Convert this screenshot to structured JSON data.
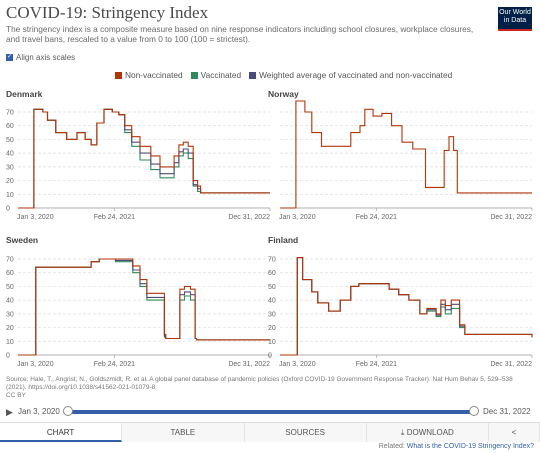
{
  "header": {
    "title": "COVID-19: Stringency Index",
    "subtitle": "The stringency index is a composite measure based on nine response indicators including school closures, workplace closures, and travel bans, rescaled to a value from 0 to 100 (100 = strictest).",
    "logo_line1": "Our World",
    "logo_line2": "in Data",
    "align_label": "Align axis scales"
  },
  "legend": [
    {
      "label": "Non-vaccinated",
      "color": "#b13507"
    },
    {
      "label": "Vaccinated",
      "color": "#2f8b5a"
    },
    {
      "label": "Weighted average of vaccinated and non-vaccinated",
      "color": "#4c4c7a"
    }
  ],
  "colors": {
    "non_vaccinated": "#b13507",
    "vaccinated": "#2f8b5a",
    "weighted": "#4c4c7a"
  },
  "chart_data": [
    {
      "type": "line",
      "title": "Denmark",
      "ylim": [
        0,
        70
      ],
      "yticks": [
        0,
        10,
        20,
        30,
        40,
        50,
        60,
        70
      ],
      "xticks": [
        "Jan 3, 2020",
        "Feb 24, 2021",
        "Dec 31, 2022"
      ],
      "series": [
        {
          "name": "Non-vaccinated",
          "x": [
            "2020-01-03",
            "2020-03-01",
            "2020-03-12",
            "2020-04-20",
            "2020-05-10",
            "2020-06-15",
            "2020-08-01",
            "2020-09-15",
            "2020-10-20",
            "2020-11-15",
            "2020-12-10",
            "2021-01-10",
            "2021-02-15",
            "2021-03-15",
            "2021-04-10",
            "2021-05-10",
            "2021-06-15",
            "2021-08-01",
            "2021-09-10",
            "2021-11-10",
            "2021-12-01",
            "2021-12-20",
            "2022-01-10",
            "2022-02-01",
            "2022-02-20",
            "2022-03-05",
            "2022-12-31"
          ],
          "y": [
            0,
            0,
            72,
            70,
            64,
            55,
            50,
            55,
            50,
            46,
            62,
            72,
            70,
            68,
            60,
            52,
            45,
            38,
            30,
            38,
            46,
            48,
            45,
            20,
            16,
            11,
            11
          ]
        },
        {
          "name": "Vaccinated",
          "x": [
            "2020-01-03",
            "2020-03-01",
            "2020-03-12",
            "2020-04-20",
            "2020-05-10",
            "2020-06-15",
            "2020-08-01",
            "2020-09-15",
            "2020-10-20",
            "2020-11-15",
            "2020-12-10",
            "2021-01-10",
            "2021-02-15",
            "2021-03-15",
            "2021-04-10",
            "2021-05-10",
            "2021-06-15",
            "2021-08-01",
            "2021-09-10",
            "2021-11-10",
            "2021-12-01",
            "2021-12-20",
            "2022-01-10",
            "2022-02-01",
            "2022-02-20",
            "2022-03-05",
            "2022-12-31"
          ],
          "y": [
            0,
            0,
            72,
            70,
            64,
            55,
            50,
            55,
            50,
            46,
            62,
            72,
            70,
            68,
            55,
            45,
            35,
            28,
            22,
            30,
            38,
            40,
            36,
            16,
            12,
            11,
            11
          ]
        },
        {
          "name": "Weighted average of vaccinated and non-vaccinated",
          "x": [
            "2020-01-03",
            "2020-03-01",
            "2020-03-12",
            "2020-04-20",
            "2020-05-10",
            "2020-06-15",
            "2020-08-01",
            "2020-09-15",
            "2020-10-20",
            "2020-11-15",
            "2020-12-10",
            "2021-01-10",
            "2021-02-15",
            "2021-03-15",
            "2021-04-10",
            "2021-05-10",
            "2021-06-15",
            "2021-08-01",
            "2021-09-10",
            "2021-11-10",
            "2021-12-01",
            "2021-12-20",
            "2022-01-10",
            "2022-02-01",
            "2022-02-20",
            "2022-03-05",
            "2022-12-31"
          ],
          "y": [
            0,
            0,
            72,
            70,
            64,
            55,
            50,
            55,
            50,
            46,
            62,
            72,
            70,
            68,
            57,
            48,
            40,
            32,
            25,
            33,
            41,
            43,
            40,
            17,
            14,
            11,
            11
          ]
        }
      ]
    },
    {
      "type": "line",
      "title": "Norway",
      "ylim": [
        0,
        70
      ],
      "yticks": [
        0,
        10,
        20,
        30,
        40,
        50,
        60,
        70
      ],
      "xticks": [
        "Jan 3, 2020",
        "Feb 24, 2021",
        "Dec 31, 2022"
      ],
      "series": [
        {
          "name": "Non-vaccinated",
          "x": [
            "2020-01-03",
            "2020-03-01",
            "2020-03-12",
            "2020-04-20",
            "2020-05-20",
            "2020-07-01",
            "2020-09-15",
            "2020-11-05",
            "2020-12-15",
            "2021-01-05",
            "2021-02-10",
            "2021-03-20",
            "2021-05-01",
            "2021-06-15",
            "2021-08-01",
            "2021-09-25",
            "2021-11-15",
            "2021-12-15",
            "2022-01-05",
            "2022-01-25",
            "2022-02-10",
            "2022-02-12",
            "2022-12-31"
          ],
          "y": [
            0,
            0,
            78,
            70,
            55,
            45,
            45,
            55,
            60,
            72,
            67,
            69,
            60,
            48,
            43,
            15,
            15,
            42,
            52,
            42,
            11,
            11,
            11
          ]
        }
      ]
    },
    {
      "type": "line",
      "title": "Sweden",
      "ylim": [
        0,
        70
      ],
      "yticks": [
        0,
        10,
        20,
        30,
        40,
        50,
        60,
        70
      ],
      "xticks": [
        "Jan 3, 2020",
        "Feb 24, 2021",
        "Dec 31, 2022"
      ],
      "series": [
        {
          "name": "Non-vaccinated",
          "x": [
            "2020-01-03",
            "2020-03-01",
            "2020-03-20",
            "2020-06-01",
            "2020-09-01",
            "2020-11-15",
            "2020-12-20",
            "2021-03-01",
            "2021-05-15",
            "2021-06-15",
            "2021-07-15",
            "2021-09-29",
            "2021-10-05",
            "2021-11-15",
            "2021-12-05",
            "2021-12-25",
            "2022-01-20",
            "2022-02-09",
            "2022-02-15",
            "2022-12-31"
          ],
          "y": [
            0,
            0,
            64,
            64,
            64,
            68,
            70,
            70,
            65,
            55,
            45,
            15,
            12,
            12,
            48,
            50,
            48,
            12,
            11,
            11
          ]
        },
        {
          "name": "Vaccinated",
          "x": [
            "2020-01-03",
            "2020-03-01",
            "2020-03-20",
            "2020-06-01",
            "2020-09-01",
            "2020-11-15",
            "2020-12-20",
            "2021-03-01",
            "2021-05-15",
            "2021-06-15",
            "2021-07-15",
            "2021-09-29",
            "2021-10-05",
            "2021-11-15",
            "2021-12-05",
            "2021-12-25",
            "2022-01-20",
            "2022-02-09",
            "2022-02-15",
            "2022-12-31"
          ],
          "y": [
            0,
            0,
            64,
            64,
            64,
            68,
            70,
            68,
            60,
            50,
            40,
            13,
            12,
            12,
            40,
            43,
            40,
            12,
            11,
            11
          ]
        },
        {
          "name": "Weighted average of vaccinated and non-vaccinated",
          "x": [
            "2020-01-03",
            "2020-03-01",
            "2020-03-20",
            "2020-06-01",
            "2020-09-01",
            "2020-11-15",
            "2020-12-20",
            "2021-03-01",
            "2021-05-15",
            "2021-06-15",
            "2021-07-15",
            "2021-09-29",
            "2021-10-05",
            "2021-11-15",
            "2021-12-05",
            "2021-12-25",
            "2022-01-20",
            "2022-02-09",
            "2022-02-15",
            "2022-12-31"
          ],
          "y": [
            0,
            0,
            64,
            64,
            64,
            68,
            70,
            69,
            62,
            52,
            42,
            14,
            12,
            12,
            44,
            46,
            44,
            12,
            11,
            11
          ]
        }
      ]
    },
    {
      "type": "line",
      "title": "Finland",
      "ylim": [
        0,
        70
      ],
      "yticks": [
        0,
        10,
        20,
        30,
        40,
        50,
        60,
        70
      ],
      "xticks": [
        "Jan 3, 2020",
        "Feb 24, 2021",
        "Dec 31, 2022"
      ],
      "series": [
        {
          "name": "Non-vaccinated",
          "x": [
            "2020-01-03",
            "2020-03-01",
            "2020-03-18",
            "2020-04-10",
            "2020-05-20",
            "2020-06-15",
            "2020-08-01",
            "2020-09-20",
            "2020-11-05",
            "2020-12-10",
            "2021-03-01",
            "2021-04-20",
            "2021-06-01",
            "2021-07-15",
            "2021-09-01",
            "2021-10-01",
            "2021-11-10",
            "2021-12-01",
            "2021-12-20",
            "2022-01-15",
            "2022-02-20",
            "2022-03-15",
            "2022-12-31"
          ],
          "y": [
            0,
            0,
            71,
            55,
            46,
            38,
            32,
            40,
            50,
            52,
            52,
            48,
            44,
            40,
            30,
            34,
            30,
            40,
            36,
            40,
            22,
            15,
            13
          ]
        },
        {
          "name": "Vaccinated",
          "x": [
            "2020-01-03",
            "2020-03-01",
            "2020-03-18",
            "2020-04-10",
            "2020-05-20",
            "2020-06-15",
            "2020-08-01",
            "2020-09-20",
            "2020-11-05",
            "2020-12-10",
            "2021-03-01",
            "2021-04-20",
            "2021-06-01",
            "2021-07-15",
            "2021-09-01",
            "2021-10-01",
            "2021-11-10",
            "2021-12-01",
            "2021-12-20",
            "2022-01-15",
            "2022-02-20",
            "2022-03-15",
            "2022-12-31"
          ],
          "y": [
            0,
            0,
            71,
            55,
            46,
            38,
            32,
            40,
            50,
            52,
            52,
            48,
            44,
            40,
            30,
            32,
            28,
            35,
            30,
            34,
            20,
            15,
            13
          ]
        },
        {
          "name": "Weighted average of vaccinated and non-vaccinated",
          "x": [
            "2020-01-03",
            "2020-03-01",
            "2020-03-18",
            "2020-04-10",
            "2020-05-20",
            "2020-06-15",
            "2020-08-01",
            "2020-09-20",
            "2020-11-05",
            "2020-12-10",
            "2021-03-01",
            "2021-04-20",
            "2021-06-01",
            "2021-07-15",
            "2021-09-01",
            "2021-10-01",
            "2021-11-10",
            "2021-12-01",
            "2021-12-20",
            "2022-01-15",
            "2022-02-20",
            "2022-03-15",
            "2022-12-31"
          ],
          "y": [
            0,
            0,
            71,
            55,
            46,
            38,
            32,
            40,
            50,
            52,
            52,
            48,
            44,
            40,
            30,
            33,
            29,
            37,
            33,
            37,
            21,
            15,
            13
          ]
        }
      ]
    }
  ],
  "source": {
    "line1": "Source: Hale, T., Angrist, N., Goldszmidt, R. et al. A global panel database of pandemic policies (Oxford COVID-19 Government Response Tracker). Nat Hum Behav 5, 529–538",
    "line2": "(2021). https://doi.org/10.1038/s41562-021-01079-8",
    "line3": "CC BY"
  },
  "timeline": {
    "start": "Jan 3, 2020",
    "end": "Dec 31, 2022",
    "start_fraction": 0,
    "end_fraction": 1
  },
  "tabs": {
    "chart": "CHART",
    "table": "TABLE",
    "sources": "SOURCES",
    "download": "DOWNLOAD"
  },
  "related": {
    "prefix": "Related:",
    "link": "What is the COVID-19 Stringency Index?"
  }
}
